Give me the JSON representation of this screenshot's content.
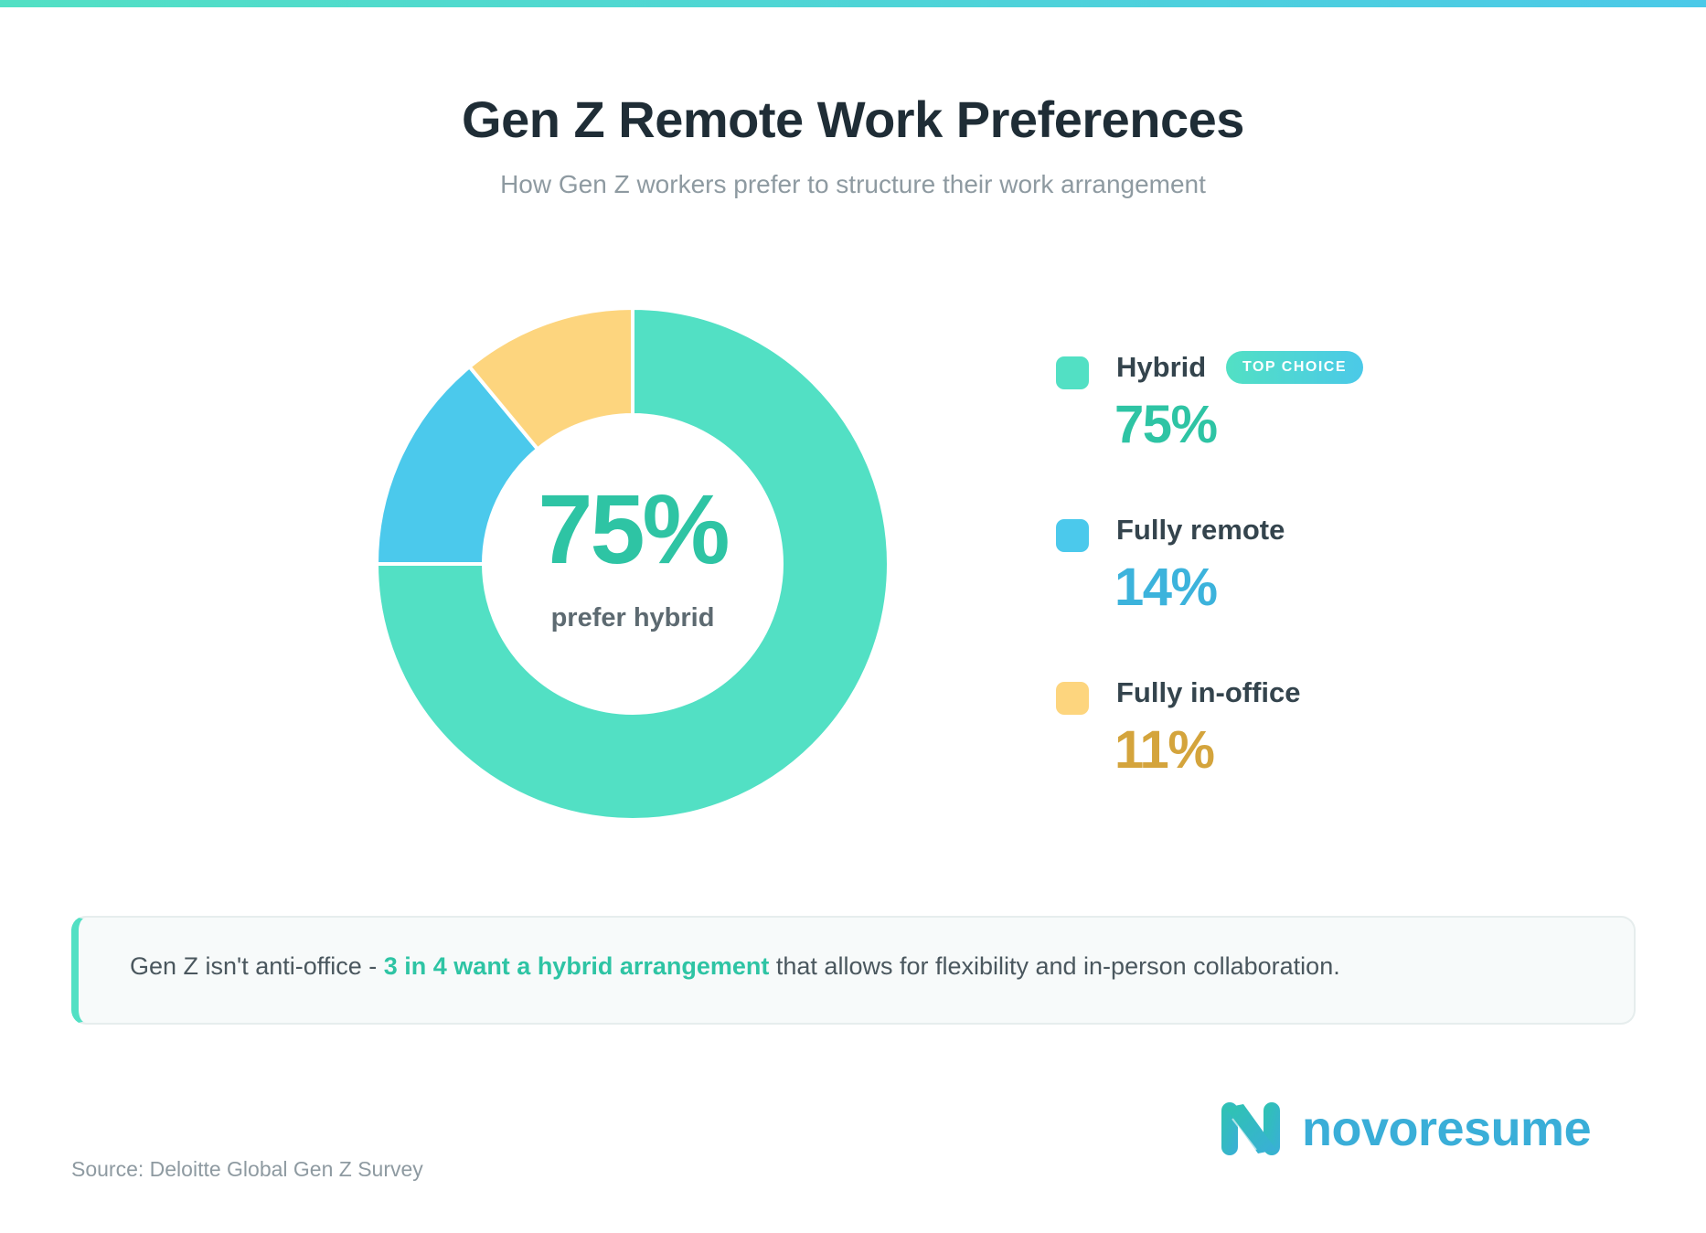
{
  "header": {
    "title": "Gen Z Remote Work Preferences",
    "subtitle": "How Gen Z workers prefer to structure their work arrangement"
  },
  "donut_center": {
    "value": "75%",
    "label": "prefer hybrid"
  },
  "legend": {
    "items": [
      {
        "label": "Hybrid",
        "value": "75%",
        "color": "#52e0c4",
        "value_color": "#2ec4a4",
        "badge": "TOP CHOICE"
      },
      {
        "label": "Fully remote",
        "value": "14%",
        "color": "#4bc9ec",
        "value_color": "#3cb3dc"
      },
      {
        "label": "Fully in-office",
        "value": "11%",
        "color": "#fdd57e",
        "value_color": "#d4a43c"
      }
    ]
  },
  "callout": {
    "prefix": "Gen Z isn't anti-office - ",
    "highlight": "3 in 4 want a hybrid arrangement",
    "suffix": " that allows for flexibility and in-person collaboration.",
    "accent_color": "#52e0c4"
  },
  "brand": {
    "name": "novoresume",
    "color": "#3aaed8"
  },
  "footer": {
    "source": "Source: Deloitte Global Gen Z Survey"
  },
  "chart_data": {
    "type": "pie",
    "subtype": "donut",
    "title": "Gen Z Remote Work Preferences",
    "subtitle": "How Gen Z workers prefer to structure their work arrangement",
    "categories": [
      "Hybrid",
      "Fully remote",
      "Fully in-office"
    ],
    "values": [
      75,
      14,
      11
    ],
    "unit": "%",
    "colors": [
      "#52e0c4",
      "#4bc9ec",
      "#fdd57e"
    ],
    "center_annotation": "75% prefer hybrid",
    "legend_position": "right",
    "annotations": [
      "TOP CHOICE (Hybrid)"
    ]
  }
}
